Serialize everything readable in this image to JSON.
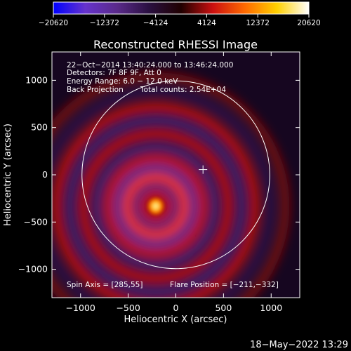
{
  "chart_data": {
    "type": "heatmap",
    "title": "Reconstructed RHESSI Image",
    "xlabel": "Heliocentric X (arcsec)",
    "ylabel": "Heliocentric Y (arcsec)",
    "xlim": [
      -1300,
      1300
    ],
    "ylim": [
      -1300,
      1300
    ],
    "xticks": [
      -1000,
      -500,
      0,
      500,
      1000
    ],
    "yticks": [
      -1000,
      -500,
      0,
      500,
      1000
    ],
    "xtick_labels": [
      "−1000",
      "−500",
      "0",
      "500",
      "1000"
    ],
    "ytick_labels": [
      "−1000",
      "−500",
      "0",
      "500",
      "1000"
    ],
    "colorbar": {
      "min": -20620,
      "max": 20620,
      "ticks": [
        -20620,
        -12372,
        -4124,
        4124,
        12372,
        20620
      ],
      "tick_labels": [
        "−20620",
        "−12372",
        "−4124",
        "4124",
        "12372",
        "20620"
      ],
      "colors": [
        "#0000ff",
        "#6633cc",
        "#5a2a8a",
        "#2a1040",
        "#200000",
        "#cc1010",
        "#ff6a00",
        "#ffd000",
        "#ffffff"
      ]
    },
    "annotations": [
      "22−Oct−2014 13:40:24.000 to 13:46:24.000",
      "Detectors: 7F 8F 9F, Att 0",
      "Energy Range: 6.0 − 12.0 keV",
      "Back Projection",
      "Total counts: 2.54E+04"
    ],
    "spin_axis": "Spin Axis = [285,55]",
    "flare_position": "Flare Position = [−211,−332]",
    "source": {
      "x": -211,
      "y": -332
    },
    "solar_disk": {
      "center": [
        0,
        0
      ],
      "radius": 985
    },
    "marker": {
      "x": 285,
      "y": 55
    },
    "rings": [
      {
        "r": 120,
        "level": 0.55
      },
      {
        "r": 210,
        "level": -0.45
      },
      {
        "r": 300,
        "level": 0.75
      },
      {
        "r": 400,
        "level": -0.5
      },
      {
        "r": 500,
        "level": 0.55
      },
      {
        "r": 620,
        "level": -0.45
      },
      {
        "r": 760,
        "level": 0.45
      },
      {
        "r": 900,
        "level": -0.35
      },
      {
        "r": 1040,
        "level": 0.4
      },
      {
        "r": 1200,
        "level": -0.3
      },
      {
        "r": 1360,
        "level": 0.3
      }
    ],
    "grid": false
  },
  "timestamp": "18−May−2022 13:29"
}
